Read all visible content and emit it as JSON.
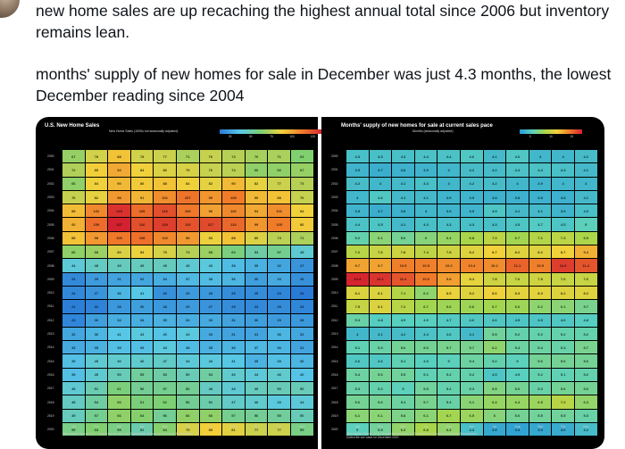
{
  "tweet": {
    "line1": "new home sales are up recaching the highest annual total since 2006 but inventory remains lean.",
    "line2": "months' supply of new homes for sale in December was just 4.3 months, the lowest December reading since 2004"
  },
  "left_chart": {
    "title": "U.S. New Home Sales",
    "subtitle": "New Home Sales (1000s not seasonally adjusted)",
    "legend_ticks": [
      "25",
      "50",
      "75",
      "100",
      "125"
    ],
    "legend_colors": [
      "#2a7bd6",
      "#58c8e6",
      "#7fd070",
      "#f2d13a",
      "#f07a2a",
      "#d4212f"
    ],
    "source": "@benkaster Source: U.S. Census Bureau and U.S. Department of Housing and Urban Development"
  },
  "right_chart": {
    "title": "Months' supply of new homes for sale at current sales pace",
    "subtitle": "Months (seasonally adjusted)",
    "legend_ticks": [
      "5",
      "10",
      "15"
    ],
    "legend_colors": [
      "#2a9ad6",
      "#58d0c0",
      "#a7d64a",
      "#f2d13a",
      "#f07a2a",
      "#d4212f"
    ],
    "source": "@benkaster Source: U.S. Census Bureau and U.S. Department of Housing and Urban Development\nDotted tile are value for December 2020"
  },
  "chart_data": [
    {
      "type": "heatmap",
      "title": "U.S. New Home Sales",
      "colorbar_label": "New Home Sales (1000s not seasonally adjusted)",
      "x": [
        "Jan",
        "Feb",
        "Mar",
        "Apr",
        "May",
        "Jun",
        "Jul",
        "Aug",
        "Sep",
        "Oct",
        "Nov"
      ],
      "y": [
        "2000",
        "2001",
        "2002",
        "2003",
        "2004",
        "2005",
        "2006",
        "2007",
        "2008",
        "2009",
        "2010",
        "2011",
        "2012",
        "2013",
        "2014",
        "2015",
        "2016",
        "2017",
        "2018",
        "2019",
        "2020"
      ],
      "values": [
        [
          67,
          78,
          88,
          78,
          77,
          71,
          76,
          73,
          70,
          71,
          63
        ],
        [
          72,
          85,
          94,
          84,
          80,
          79,
          76,
          74,
          66,
          66,
          67
        ],
        [
          66,
          84,
          90,
          86,
          88,
          84,
          82,
          90,
          82,
          77,
          73
        ],
        [
          76,
          82,
          98,
          91,
          101,
          107,
          99,
          105,
          90,
          88,
          76
        ],
        [
          89,
          102,
          123,
          109,
          116,
          106,
          96,
          102,
          94,
          101,
          84
        ],
        [
          92,
          109,
          127,
          116,
          120,
          115,
          117,
          110,
          99,
          105,
          86
        ],
        [
          88,
          98,
          106,
          108,
          102,
          98,
          83,
          88,
          80,
          74,
          71
        ],
        [
          66,
          68,
          80,
          83,
          79,
          73,
          68,
          60,
          53,
          57,
          45
        ],
        [
          44,
          48,
          49,
          49,
          49,
          45,
          43,
          38,
          35,
          32,
          27
        ],
        [
          24,
          29,
          31,
          32,
          34,
          37,
          38,
          36,
          30,
          33,
          26
        ],
        [
          24,
          27,
          36,
          41,
          26,
          29,
          28,
          25,
          25,
          23,
          20
        ],
        [
          21,
          22,
          28,
          30,
          28,
          29,
          27,
          25,
          24,
          25,
          23
        ],
        [
          23,
          30,
          34,
          34,
          35,
          34,
          33,
          31,
          30,
          29,
          28
        ],
        [
          32,
          36,
          41,
          43,
          40,
          43,
          33,
          31,
          31,
          36,
          32
        ],
        [
          33,
          35,
          39,
          39,
          43,
          38,
          35,
          36,
          37,
          36,
          31
        ],
        [
          39,
          45,
          46,
          46,
          47,
          44,
          43,
          41,
          35,
          39,
          36
        ],
        [
          39,
          45,
          50,
          55,
          53,
          50,
          54,
          46,
          44,
          46,
          40
        ],
        [
          45,
          51,
          61,
          56,
          57,
          56,
          48,
          45,
          49,
          50,
          50
        ],
        [
          48,
          54,
          66,
          61,
          62,
          56,
          52,
          47,
          46,
          43,
          44
        ],
        [
          49,
          57,
          66,
          64,
          56,
          66,
          66,
          57,
          56,
          55,
          50
        ],
        [
          59,
          63,
          59,
          52,
          64,
          79,
          85,
          81,
          77,
          77,
          59
        ]
      ]
    },
    {
      "type": "heatmap",
      "title": "Months' supply of new homes for sale at current sales pace",
      "colorbar_label": "Months (seasonally adjusted)",
      "x": [
        "Jan",
        "Feb",
        "Mar",
        "Apr",
        "May",
        "Jun",
        "Jul",
        "Aug",
        "Sep",
        "Oct",
        "Nov"
      ],
      "y": [
        "2000",
        "2001",
        "2002",
        "2003",
        "2004",
        "2005",
        "2006",
        "2007",
        "2008",
        "2009",
        "2010",
        "2011",
        "2012",
        "2013",
        "2014",
        "2015",
        "2016",
        "2017",
        "2018",
        "2019",
        "2020"
      ],
      "values": [
        [
          4.3,
          4.3,
          4.3,
          4.4,
          4.4,
          4.6,
          4.1,
          4.6,
          4,
          4,
          4.2
        ],
        [
          3.9,
          3.7,
          3.8,
          3.9,
          4,
          4.2,
          4.2,
          4.4,
          4.4,
          4.3,
          4.1
        ],
        [
          4.2,
          4,
          4.1,
          4.3,
          4,
          4.2,
          4.2,
          4,
          3.9,
          4,
          4
        ],
        [
          4,
          4.6,
          4.1,
          4.1,
          3.9,
          3.9,
          3.8,
          3.8,
          3.8,
          3.8,
          4.1
        ],
        [
          3.9,
          3.7,
          3.8,
          4,
          3.9,
          3.9,
          4.5,
          4.1,
          4.1,
          3.9,
          4.3
        ],
        [
          4.4,
          4.5,
          4.1,
          4.3,
          4.3,
          4.3,
          4.3,
          4.5,
          4.7,
          4.5,
          5
        ],
        [
          5.2,
          6.1,
          5.6,
          6,
          6.4,
          6.8,
          7.3,
          6.7,
          7.1,
          7.3,
          6.9
        ],
        [
          7.2,
          7.6,
          7.8,
          7.4,
          7.8,
          8.2,
          8.7,
          8.2,
          8.2,
          8.7,
          9.4
        ],
        [
          9.7,
          9.7,
          10.5,
          10.5,
          10.2,
          10.4,
          10.2,
          11.1,
          10.5,
          11.9,
          11.4
        ],
        [
          12.4,
          12.1,
          11.4,
          10.6,
          9.8,
          8.4,
          7.8,
          7.6,
          7.8,
          7.6,
          7.6
        ],
        [
          8.1,
          8.1,
          7.1,
          6.2,
          8.5,
          8.2,
          8.6,
          8.3,
          8.3,
          8.2,
          8.2
        ],
        [
          7.5,
          8.1,
          7.2,
          6.7,
          6.6,
          6.6,
          6.7,
          6.6,
          6.2,
          6.1,
          5.7
        ],
        [
          5.3,
          4.8,
          4.9,
          4.9,
          4.7,
          4.6,
          4.6,
          4.5,
          4.5,
          4.6,
          4.8
        ],
        [
          4,
          4.1,
          4.2,
          4.4,
          4.6,
          4.1,
          5.5,
          5.2,
          5.2,
          5.2,
          5.2
        ],
        [
          5.1,
          5.3,
          5.6,
          5.6,
          5.7,
          5.7,
          6.2,
          5.4,
          5.4,
          5.3,
          5.7
        ],
        [
          4.6,
          4.6,
          5.1,
          4.9,
          5,
          5.4,
          5.2,
          5,
          5.6,
          5.6,
          5.6
        ],
        [
          5.4,
          5.6,
          5.5,
          5.1,
          5.2,
          5.2,
          4.5,
          4.9,
          5.2,
          5.1,
          5.2
        ],
        [
          5.3,
          5.2,
          5,
          5.5,
          5.2,
          5.3,
          5.9,
          5.6,
          5.3,
          5.6,
          5.6
        ],
        [
          5.6,
          5.6,
          5.4,
          5.7,
          5.3,
          6.1,
          6.4,
          6.4,
          6.5,
          7.2,
          6.3
        ],
        [
          6.1,
          6.1,
          5.8,
          6.1,
          6.7,
          6.5,
          6,
          5.6,
          5.5,
          5.5,
          5.3
        ],
        [
          5,
          5.5,
          6.3,
          6.8,
          6.3,
          4.3,
          3.5,
          3.3,
          3.5,
          3.6,
          4.2
        ]
      ]
    }
  ]
}
